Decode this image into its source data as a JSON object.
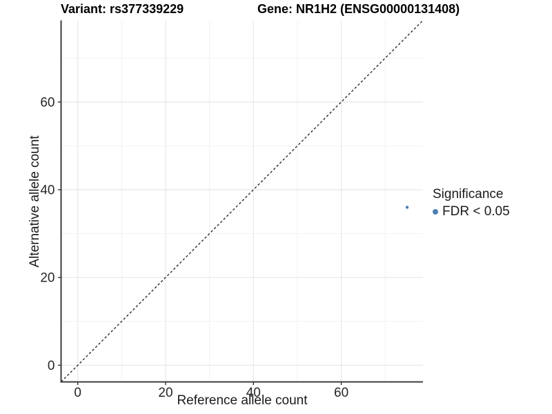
{
  "titles": {
    "variant": "Variant: rs377339229",
    "gene": "Gene: NR1H2 (ENSG00000131408)"
  },
  "chart_data": {
    "type": "scatter",
    "xlabel": "Reference allele count",
    "ylabel": "Alternative allele count",
    "xlim": [
      -3.8,
      78.6
    ],
    "ylim": [
      -3.8,
      78.6
    ],
    "xticks": [
      0,
      20,
      40,
      60
    ],
    "yticks": [
      0,
      20,
      40,
      60
    ],
    "minor_ticks": [
      10,
      30,
      50,
      70
    ],
    "grid": "on",
    "points": [
      {
        "x": 75,
        "y": 36,
        "series": "FDR < 0.05"
      }
    ],
    "identity_line": {
      "slope": 1,
      "intercept": 0,
      "style": "dashed",
      "color": "#1a1a1a"
    },
    "point_color": "#4d80b2",
    "legend": {
      "title": "Significance",
      "position": "right",
      "items": [
        {
          "label": "FDR < 0.05",
          "color": "#4d80b2"
        }
      ]
    },
    "colors": {
      "axis_line": "#3c3c3c",
      "major_grid": "#e7e7e7",
      "minor_grid": "#f2f2f2",
      "tick": "#333333"
    }
  }
}
